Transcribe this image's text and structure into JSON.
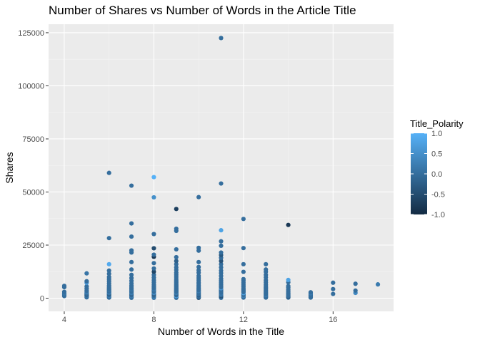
{
  "chart_data": {
    "type": "scatter",
    "title": "Number of Shares vs Number of Words in the Article Title",
    "xlabel": "Number of Words in the Title",
    "ylabel": "Shares",
    "xlim": [
      3.3,
      18.7
    ],
    "ylim": [
      -6200,
      129000
    ],
    "x_ticks": [
      4,
      8,
      12,
      16
    ],
    "y_ticks": [
      0,
      25000,
      50000,
      75000,
      100000,
      125000
    ],
    "x_tick_labels": [
      "4",
      "8",
      "12",
      "16"
    ],
    "y_tick_labels": [
      "0",
      "25000",
      "50000",
      "75000",
      "100000",
      "125000"
    ],
    "grid": true,
    "legend": {
      "title": "Title_Polarity",
      "placement": "right",
      "type": "colorbar",
      "range": [
        -1.0,
        1.0
      ],
      "ticks": [
        -1.0,
        -0.5,
        0.0,
        0.5,
        1.0
      ],
      "tick_labels": [
        "-1.0",
        "-0.5",
        "0.0",
        "0.5",
        "1.0"
      ],
      "low_color": "#132b43",
      "high_color": "#56b1f7"
    },
    "points": [
      {
        "x": 4,
        "y": 1000,
        "c": 0
      },
      {
        "x": 4,
        "y": 1500,
        "c": 0
      },
      {
        "x": 4,
        "y": 2200,
        "c": 0.1
      },
      {
        "x": 4,
        "y": 3000,
        "c": 0
      },
      {
        "x": 4,
        "y": 5200,
        "c": 0
      },
      {
        "x": 4,
        "y": 5800,
        "c": 0
      },
      {
        "x": 5,
        "y": 400,
        "c": 0
      },
      {
        "x": 5,
        "y": 900,
        "c": 0.1
      },
      {
        "x": 5,
        "y": 1300,
        "c": 0
      },
      {
        "x": 5,
        "y": 1700,
        "c": -0.2
      },
      {
        "x": 5,
        "y": 2200,
        "c": 0
      },
      {
        "x": 5,
        "y": 2800,
        "c": 0.2
      },
      {
        "x": 5,
        "y": 3500,
        "c": 0
      },
      {
        "x": 5,
        "y": 4500,
        "c": 0
      },
      {
        "x": 5,
        "y": 5500,
        "c": 0
      },
      {
        "x": 5,
        "y": 7200,
        "c": 0.6
      },
      {
        "x": 5,
        "y": 8000,
        "c": 0
      },
      {
        "x": 5,
        "y": 11700,
        "c": 0.1
      },
      {
        "x": 6,
        "y": 300,
        "c": 0
      },
      {
        "x": 6,
        "y": 700,
        "c": 0
      },
      {
        "x": 6,
        "y": 1100,
        "c": 0.2
      },
      {
        "x": 6,
        "y": 1500,
        "c": 0
      },
      {
        "x": 6,
        "y": 1900,
        "c": -0.3
      },
      {
        "x": 6,
        "y": 2300,
        "c": 0
      },
      {
        "x": 6,
        "y": 2700,
        "c": 0.3
      },
      {
        "x": 6,
        "y": 3100,
        "c": 0
      },
      {
        "x": 6,
        "y": 3500,
        "c": 0
      },
      {
        "x": 6,
        "y": 3900,
        "c": 0.1
      },
      {
        "x": 6,
        "y": 4300,
        "c": 0
      },
      {
        "x": 6,
        "y": 4800,
        "c": 0
      },
      {
        "x": 6,
        "y": 5300,
        "c": 0
      },
      {
        "x": 6,
        "y": 6000,
        "c": 0
      },
      {
        "x": 6,
        "y": 7000,
        "c": 0
      },
      {
        "x": 6,
        "y": 8000,
        "c": 0
      },
      {
        "x": 6,
        "y": 9000,
        "c": 0
      },
      {
        "x": 6,
        "y": 10000,
        "c": 0
      },
      {
        "x": 6,
        "y": 11500,
        "c": 0
      },
      {
        "x": 6,
        "y": 13000,
        "c": 0
      },
      {
        "x": 6,
        "y": 16000,
        "c": 0.9
      },
      {
        "x": 6,
        "y": 28300,
        "c": 0
      },
      {
        "x": 6,
        "y": 59000,
        "c": 0
      },
      {
        "x": 7,
        "y": 200,
        "c": 0
      },
      {
        "x": 7,
        "y": 600,
        "c": 0
      },
      {
        "x": 7,
        "y": 1000,
        "c": 0.2
      },
      {
        "x": 7,
        "y": 1400,
        "c": 0
      },
      {
        "x": 7,
        "y": 1800,
        "c": -0.2
      },
      {
        "x": 7,
        "y": 2200,
        "c": 0
      },
      {
        "x": 7,
        "y": 2600,
        "c": 0.3
      },
      {
        "x": 7,
        "y": 3000,
        "c": 0
      },
      {
        "x": 7,
        "y": 3400,
        "c": 0
      },
      {
        "x": 7,
        "y": 3800,
        "c": 0
      },
      {
        "x": 7,
        "y": 4200,
        "c": 0.1
      },
      {
        "x": 7,
        "y": 4700,
        "c": 0
      },
      {
        "x": 7,
        "y": 5300,
        "c": 0
      },
      {
        "x": 7,
        "y": 6000,
        "c": 0
      },
      {
        "x": 7,
        "y": 7000,
        "c": 0
      },
      {
        "x": 7,
        "y": 8200,
        "c": 0
      },
      {
        "x": 7,
        "y": 9500,
        "c": 0
      },
      {
        "x": 7,
        "y": 11000,
        "c": 0
      },
      {
        "x": 7,
        "y": 13500,
        "c": 0
      },
      {
        "x": 7,
        "y": 17000,
        "c": 0
      },
      {
        "x": 7,
        "y": 21500,
        "c": 0
      },
      {
        "x": 7,
        "y": 22500,
        "c": 0
      },
      {
        "x": 7,
        "y": 29000,
        "c": 0
      },
      {
        "x": 7,
        "y": 35200,
        "c": 0
      },
      {
        "x": 7,
        "y": 53000,
        "c": 0
      },
      {
        "x": 8,
        "y": 200,
        "c": 0
      },
      {
        "x": 8,
        "y": 600,
        "c": 0.4
      },
      {
        "x": 8,
        "y": 1000,
        "c": 0
      },
      {
        "x": 8,
        "y": 1400,
        "c": 0
      },
      {
        "x": 8,
        "y": 1800,
        "c": -0.3
      },
      {
        "x": 8,
        "y": 2200,
        "c": 0
      },
      {
        "x": 8,
        "y": 2600,
        "c": 0.6
      },
      {
        "x": 8,
        "y": 3000,
        "c": 0
      },
      {
        "x": 8,
        "y": 3400,
        "c": 0
      },
      {
        "x": 8,
        "y": 3800,
        "c": 0
      },
      {
        "x": 8,
        "y": 4200,
        "c": 0.2
      },
      {
        "x": 8,
        "y": 4700,
        "c": 0
      },
      {
        "x": 8,
        "y": 5200,
        "c": 0
      },
      {
        "x": 8,
        "y": 5800,
        "c": 0
      },
      {
        "x": 8,
        "y": 6500,
        "c": 0
      },
      {
        "x": 8,
        "y": 7500,
        "c": 0
      },
      {
        "x": 8,
        "y": 8500,
        "c": 0
      },
      {
        "x": 8,
        "y": 9700,
        "c": 0
      },
      {
        "x": 8,
        "y": 11000,
        "c": 0
      },
      {
        "x": 8,
        "y": 12500,
        "c": -0.6
      },
      {
        "x": 8,
        "y": 14000,
        "c": 0
      },
      {
        "x": 8,
        "y": 16500,
        "c": 0
      },
      {
        "x": 8,
        "y": 19500,
        "c": -0.8
      },
      {
        "x": 8,
        "y": 20500,
        "c": 0
      },
      {
        "x": 8,
        "y": 23500,
        "c": -0.5
      },
      {
        "x": 8,
        "y": 30200,
        "c": 0
      },
      {
        "x": 8,
        "y": 47500,
        "c": 0.5
      },
      {
        "x": 8,
        "y": 57000,
        "c": 1.0
      },
      {
        "x": 9,
        "y": 200,
        "c": 0
      },
      {
        "x": 9,
        "y": 600,
        "c": 0
      },
      {
        "x": 9,
        "y": 1000,
        "c": 0.7
      },
      {
        "x": 9,
        "y": 1400,
        "c": 0
      },
      {
        "x": 9,
        "y": 1800,
        "c": -0.2
      },
      {
        "x": 9,
        "y": 2200,
        "c": 0
      },
      {
        "x": 9,
        "y": 2600,
        "c": 0.3
      },
      {
        "x": 9,
        "y": 3000,
        "c": 0
      },
      {
        "x": 9,
        "y": 3400,
        "c": 0
      },
      {
        "x": 9,
        "y": 3800,
        "c": 0
      },
      {
        "x": 9,
        "y": 4200,
        "c": 0
      },
      {
        "x": 9,
        "y": 4700,
        "c": 0
      },
      {
        "x": 9,
        "y": 5200,
        "c": 0
      },
      {
        "x": 9,
        "y": 5700,
        "c": 0
      },
      {
        "x": 9,
        "y": 6200,
        "c": 0
      },
      {
        "x": 9,
        "y": 6800,
        "c": 0
      },
      {
        "x": 9,
        "y": 7500,
        "c": 0
      },
      {
        "x": 9,
        "y": 8200,
        "c": 0
      },
      {
        "x": 9,
        "y": 9000,
        "c": 0
      },
      {
        "x": 9,
        "y": 10000,
        "c": 0
      },
      {
        "x": 9,
        "y": 11000,
        "c": 0
      },
      {
        "x": 9,
        "y": 12000,
        "c": 0
      },
      {
        "x": 9,
        "y": 13300,
        "c": 0
      },
      {
        "x": 9,
        "y": 14500,
        "c": 0
      },
      {
        "x": 9,
        "y": 16000,
        "c": 0
      },
      {
        "x": 9,
        "y": 17500,
        "c": -0.2
      },
      {
        "x": 9,
        "y": 19300,
        "c": 0
      },
      {
        "x": 9,
        "y": 23000,
        "c": 0
      },
      {
        "x": 9,
        "y": 31700,
        "c": 0
      },
      {
        "x": 9,
        "y": 32700,
        "c": 0
      },
      {
        "x": 9,
        "y": 42000,
        "c": -0.7
      },
      {
        "x": 10,
        "y": 200,
        "c": -0.5
      },
      {
        "x": 10,
        "y": 600,
        "c": 0
      },
      {
        "x": 10,
        "y": 1000,
        "c": 0
      },
      {
        "x": 10,
        "y": 1400,
        "c": -0.3
      },
      {
        "x": 10,
        "y": 1800,
        "c": 0
      },
      {
        "x": 10,
        "y": 2200,
        "c": 0
      },
      {
        "x": 10,
        "y": 2600,
        "c": 0
      },
      {
        "x": 10,
        "y": 3000,
        "c": 0
      },
      {
        "x": 10,
        "y": 3400,
        "c": 0.2
      },
      {
        "x": 10,
        "y": 3800,
        "c": 0
      },
      {
        "x": 10,
        "y": 4200,
        "c": 0
      },
      {
        "x": 10,
        "y": 4700,
        "c": 0
      },
      {
        "x": 10,
        "y": 5300,
        "c": 0
      },
      {
        "x": 10,
        "y": 6000,
        "c": 0
      },
      {
        "x": 10,
        "y": 6800,
        "c": 0
      },
      {
        "x": 10,
        "y": 7500,
        "c": 0
      },
      {
        "x": 10,
        "y": 8500,
        "c": 0
      },
      {
        "x": 10,
        "y": 9500,
        "c": 0
      },
      {
        "x": 10,
        "y": 10500,
        "c": 0
      },
      {
        "x": 10,
        "y": 12000,
        "c": 0
      },
      {
        "x": 10,
        "y": 13200,
        "c": 0
      },
      {
        "x": 10,
        "y": 14700,
        "c": 0
      },
      {
        "x": 10,
        "y": 17000,
        "c": 0
      },
      {
        "x": 10,
        "y": 22400,
        "c": 0
      },
      {
        "x": 10,
        "y": 23700,
        "c": 0
      },
      {
        "x": 10,
        "y": 47600,
        "c": 0
      },
      {
        "x": 11,
        "y": 200,
        "c": 0
      },
      {
        "x": 11,
        "y": 600,
        "c": 0
      },
      {
        "x": 11,
        "y": 1000,
        "c": -0.5
      },
      {
        "x": 11,
        "y": 1400,
        "c": 0
      },
      {
        "x": 11,
        "y": 1800,
        "c": 0
      },
      {
        "x": 11,
        "y": 2200,
        "c": 0.2
      },
      {
        "x": 11,
        "y": 2600,
        "c": 0
      },
      {
        "x": 11,
        "y": 3000,
        "c": 0
      },
      {
        "x": 11,
        "y": 3400,
        "c": 0
      },
      {
        "x": 11,
        "y": 3800,
        "c": 0
      },
      {
        "x": 11,
        "y": 4200,
        "c": 0
      },
      {
        "x": 11,
        "y": 4700,
        "c": 0.6
      },
      {
        "x": 11,
        "y": 5200,
        "c": 0
      },
      {
        "x": 11,
        "y": 5800,
        "c": 0
      },
      {
        "x": 11,
        "y": 6500,
        "c": 0
      },
      {
        "x": 11,
        "y": 7300,
        "c": 0
      },
      {
        "x": 11,
        "y": 8200,
        "c": 0
      },
      {
        "x": 11,
        "y": 9200,
        "c": 0
      },
      {
        "x": 11,
        "y": 10500,
        "c": 0
      },
      {
        "x": 11,
        "y": 11800,
        "c": 0
      },
      {
        "x": 11,
        "y": 13000,
        "c": 0
      },
      {
        "x": 11,
        "y": 14500,
        "c": 0
      },
      {
        "x": 11,
        "y": 16000,
        "c": 0
      },
      {
        "x": 11,
        "y": 17500,
        "c": -0.4
      },
      {
        "x": 11,
        "y": 19000,
        "c": 0
      },
      {
        "x": 11,
        "y": 20300,
        "c": -0.3
      },
      {
        "x": 11,
        "y": 21500,
        "c": 0
      },
      {
        "x": 11,
        "y": 24700,
        "c": 0
      },
      {
        "x": 11,
        "y": 26800,
        "c": 0
      },
      {
        "x": 11,
        "y": 32000,
        "c": 0.8
      },
      {
        "x": 11,
        "y": 54000,
        "c": 0
      },
      {
        "x": 11,
        "y": 122500,
        "c": 0
      },
      {
        "x": 12,
        "y": 300,
        "c": 0
      },
      {
        "x": 12,
        "y": 700,
        "c": 0
      },
      {
        "x": 12,
        "y": 1100,
        "c": 0.3
      },
      {
        "x": 12,
        "y": 1500,
        "c": 0
      },
      {
        "x": 12,
        "y": 1900,
        "c": 0
      },
      {
        "x": 12,
        "y": 2400,
        "c": 0.8
      },
      {
        "x": 12,
        "y": 2900,
        "c": 0
      },
      {
        "x": 12,
        "y": 3400,
        "c": 0
      },
      {
        "x": 12,
        "y": 4000,
        "c": 0
      },
      {
        "x": 12,
        "y": 4700,
        "c": 0
      },
      {
        "x": 12,
        "y": 5500,
        "c": 0
      },
      {
        "x": 12,
        "y": 6300,
        "c": 0
      },
      {
        "x": 12,
        "y": 7200,
        "c": 0
      },
      {
        "x": 12,
        "y": 8200,
        "c": 0
      },
      {
        "x": 12,
        "y": 9000,
        "c": 0
      },
      {
        "x": 12,
        "y": 12400,
        "c": 0
      },
      {
        "x": 12,
        "y": 16000,
        "c": 0
      },
      {
        "x": 12,
        "y": 23600,
        "c": 0
      },
      {
        "x": 12,
        "y": 37300,
        "c": 0
      },
      {
        "x": 13,
        "y": 300,
        "c": 0
      },
      {
        "x": 13,
        "y": 700,
        "c": 0
      },
      {
        "x": 13,
        "y": 1100,
        "c": 0
      },
      {
        "x": 13,
        "y": 1500,
        "c": 0.2
      },
      {
        "x": 13,
        "y": 1900,
        "c": 0
      },
      {
        "x": 13,
        "y": 2300,
        "c": 0
      },
      {
        "x": 13,
        "y": 2800,
        "c": 0
      },
      {
        "x": 13,
        "y": 3300,
        "c": 0
      },
      {
        "x": 13,
        "y": 3800,
        "c": 0
      },
      {
        "x": 13,
        "y": 4400,
        "c": 0
      },
      {
        "x": 13,
        "y": 5000,
        "c": 0
      },
      {
        "x": 13,
        "y": 5700,
        "c": 0
      },
      {
        "x": 13,
        "y": 6500,
        "c": 0
      },
      {
        "x": 13,
        "y": 7500,
        "c": 0
      },
      {
        "x": 13,
        "y": 8500,
        "c": 0
      },
      {
        "x": 13,
        "y": 9800,
        "c": 0
      },
      {
        "x": 13,
        "y": 11000,
        "c": 0
      },
      {
        "x": 13,
        "y": 12400,
        "c": 0
      },
      {
        "x": 13,
        "y": 13500,
        "c": 0
      },
      {
        "x": 13,
        "y": 16000,
        "c": 0
      },
      {
        "x": 14,
        "y": 300,
        "c": 0
      },
      {
        "x": 14,
        "y": 700,
        "c": -0.3
      },
      {
        "x": 14,
        "y": 1100,
        "c": 0
      },
      {
        "x": 14,
        "y": 1500,
        "c": 0
      },
      {
        "x": 14,
        "y": 2000,
        "c": 0
      },
      {
        "x": 14,
        "y": 2500,
        "c": 0
      },
      {
        "x": 14,
        "y": 3200,
        "c": 0
      },
      {
        "x": 14,
        "y": 4000,
        "c": 0
      },
      {
        "x": 14,
        "y": 5000,
        "c": 0
      },
      {
        "x": 14,
        "y": 5700,
        "c": 0
      },
      {
        "x": 14,
        "y": 7500,
        "c": 0
      },
      {
        "x": 14,
        "y": 8600,
        "c": 0.8
      },
      {
        "x": 14,
        "y": 34500,
        "c": -0.8
      },
      {
        "x": 15,
        "y": 300,
        "c": 0
      },
      {
        "x": 15,
        "y": 800,
        "c": 0
      },
      {
        "x": 15,
        "y": 1300,
        "c": 0
      },
      {
        "x": 15,
        "y": 1800,
        "c": 0
      },
      {
        "x": 15,
        "y": 2300,
        "c": 0.2
      },
      {
        "x": 15,
        "y": 2800,
        "c": 0
      },
      {
        "x": 16,
        "y": 2000,
        "c": 0
      },
      {
        "x": 16,
        "y": 4300,
        "c": 0
      },
      {
        "x": 16,
        "y": 7300,
        "c": 0
      },
      {
        "x": 17,
        "y": 2500,
        "c": 0.4
      },
      {
        "x": 17,
        "y": 3600,
        "c": 0
      },
      {
        "x": 17,
        "y": 6800,
        "c": 0
      },
      {
        "x": 18,
        "y": 6500,
        "c": 0.2
      }
    ]
  }
}
